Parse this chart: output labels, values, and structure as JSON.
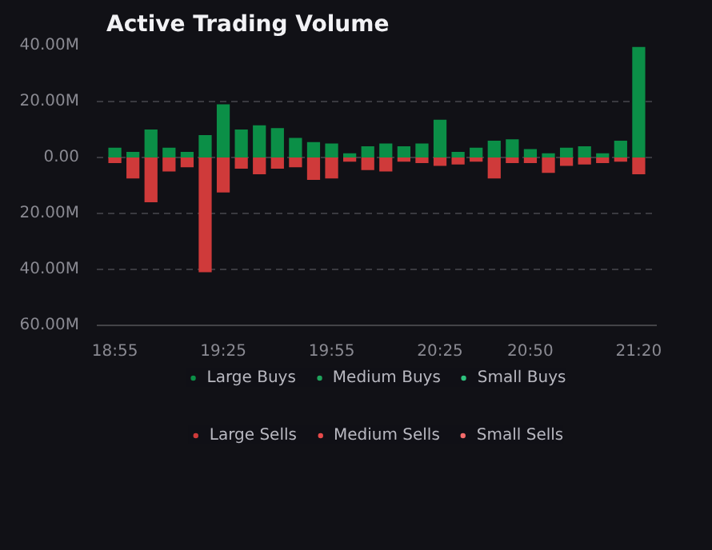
{
  "chart_data": {
    "type": "bar",
    "title": "Active Trading Volume",
    "stacked": true,
    "categories": [
      "18:55",
      null,
      null,
      null,
      null,
      null,
      "19:25",
      null,
      null,
      null,
      null,
      null,
      "19:55",
      null,
      null,
      null,
      null,
      null,
      "20:25",
      null,
      null,
      null,
      null,
      "20:50",
      null,
      null,
      null,
      null,
      null,
      "21:20"
    ],
    "series": [
      {
        "name": "Large Buys",
        "color": "#0b8f47",
        "values": [
          3500000,
          2000000,
          10000000,
          3500000,
          2000000,
          8000000,
          19000000,
          10000000,
          11500000,
          10500000,
          7000000,
          5500000,
          5000000,
          1500000,
          4000000,
          5000000,
          4000000,
          5000000,
          13500000,
          2000000,
          3500000,
          6000000,
          6500000,
          3000000,
          1500000,
          3500000,
          4000000,
          1500000,
          6000000,
          39500000
        ]
      },
      {
        "name": "Medium Buys",
        "color": "#1fa35c",
        "values": [
          null,
          null,
          null,
          null,
          null,
          null,
          null,
          null,
          null,
          null,
          null,
          null,
          null,
          null,
          null,
          null,
          null,
          null,
          null,
          null,
          null,
          null,
          null,
          null,
          null,
          null,
          null,
          null,
          null,
          null
        ]
      },
      {
        "name": "Small Buys",
        "color": "#2ec27e",
        "values": [
          null,
          null,
          null,
          null,
          null,
          null,
          null,
          null,
          null,
          null,
          null,
          null,
          null,
          null,
          null,
          null,
          null,
          null,
          null,
          null,
          null,
          null,
          null,
          null,
          null,
          null,
          null,
          null,
          null,
          null
        ]
      },
      {
        "name": "Large Sells",
        "color": "#cf3a3a",
        "values": [
          -2000000,
          -7500000,
          -16000000,
          -5000000,
          -3500000,
          -41000000,
          -12500000,
          -4000000,
          -6000000,
          -4000000,
          -3500000,
          -8000000,
          -7500000,
          -1500000,
          -4500000,
          -5000000,
          -1500000,
          -2000000,
          -3000000,
          -2500000,
          -1500000,
          -7500000,
          -2000000,
          -2000000,
          -5500000,
          -3000000,
          -2500000,
          -2000000,
          -1500000,
          -6000000
        ]
      },
      {
        "name": "Medium Sells",
        "color": "#e84a4a",
        "values": [
          null,
          null,
          null,
          null,
          null,
          null,
          null,
          null,
          null,
          null,
          null,
          null,
          null,
          null,
          null,
          null,
          null,
          null,
          null,
          null,
          null,
          null,
          null,
          null,
          null,
          null,
          null,
          null,
          null,
          null
        ]
      },
      {
        "name": "Small Sells",
        "color": "#f46b6b",
        "values": [
          null,
          null,
          null,
          null,
          null,
          null,
          null,
          null,
          null,
          null,
          null,
          null,
          null,
          null,
          null,
          null,
          null,
          null,
          null,
          null,
          null,
          null,
          null,
          null,
          null,
          null,
          null,
          null,
          null,
          null
        ]
      }
    ],
    "ylim": [
      -60000000,
      40000000
    ],
    "yticks": [
      {
        "value": -60000000,
        "label": "60.00M"
      },
      {
        "value": -40000000,
        "label": "40.00M"
      },
      {
        "value": -20000000,
        "label": "20.00M"
      },
      {
        "value": 0,
        "label": "0.00"
      },
      {
        "value": 20000000,
        "label": "20.00M"
      },
      {
        "value": 40000000,
        "label": "40.00M"
      }
    ],
    "grid": "y",
    "legend": "bottom"
  }
}
